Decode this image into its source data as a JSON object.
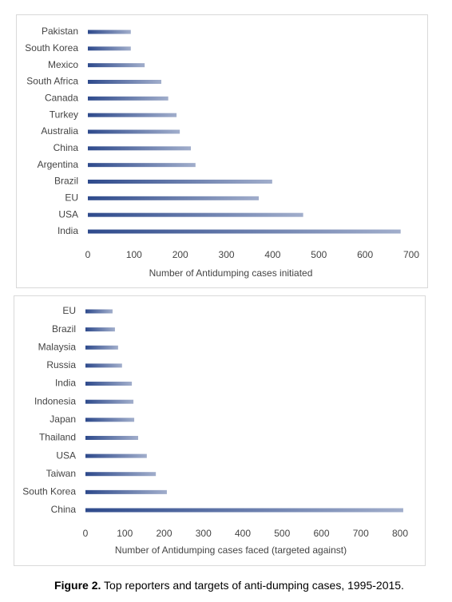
{
  "chart_data": [
    {
      "type": "bar",
      "orientation": "horizontal",
      "categories": [
        "Pakistan",
        "South Korea",
        "Mexico",
        "South Africa",
        "Canada",
        "Turkey",
        "Australia",
        "China",
        "Argentina",
        "Brazil",
        "EU",
        "USA",
        "India"
      ],
      "values": [
        93,
        93,
        123,
        159,
        174,
        192,
        199,
        223,
        233,
        399,
        370,
        466,
        677
      ],
      "color": "#2e4a8c",
      "xlim": [
        0,
        700
      ],
      "xticks": [
        0,
        100,
        200,
        300,
        400,
        500,
        600,
        700
      ],
      "xlabel": "Number of Antidumping cases initiated",
      "grid": false
    },
    {
      "type": "bar",
      "orientation": "horizontal",
      "categories": [
        "EU",
        "Brazil",
        "Malaysia",
        "Russia",
        "India",
        "Indonesia",
        "Japan",
        "Thailand",
        "USA",
        "Taiwan",
        "South Korea",
        "China"
      ],
      "values": [
        69,
        75,
        83,
        93,
        118,
        122,
        124,
        134,
        156,
        179,
        207,
        808
      ],
      "color": "#2e4a8c",
      "xlim": [
        0,
        800
      ],
      "xticks": [
        0,
        100,
        200,
        300,
        400,
        500,
        600,
        700,
        800
      ],
      "xlabel": "Number of Antidumping cases faced (targeted against)",
      "grid": false
    }
  ],
  "caption": {
    "label": "Figure 2.",
    "text": "Top reporters and targets of anti-dumping cases, 1995-2015."
  }
}
